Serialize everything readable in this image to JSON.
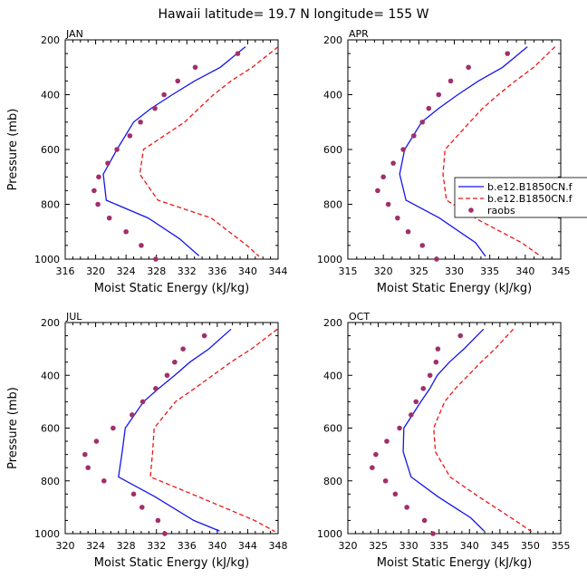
{
  "figure": {
    "title": "Hawaii  latitude= 19.7 N longitude= 155 W"
  },
  "legend": {
    "entries": [
      {
        "label": "b.e12.B1850CN.f",
        "style": "solid",
        "color": "#1515ee"
      },
      {
        "label": "b.e12.B1850CN.f",
        "style": "dashed",
        "color": "#ee1515"
      },
      {
        "label": "raobs",
        "style": "dots",
        "color": "#a0306a"
      }
    ]
  },
  "chart_data": [
    {
      "type": "line",
      "panel": "JAN",
      "xlabel": "Moist Static Energy (kJ/kg)",
      "ylabel": "Pressure (mb)",
      "xlim": [
        316,
        344
      ],
      "xticks": [
        316,
        320,
        324,
        328,
        332,
        336,
        340,
        344
      ],
      "ylim": [
        1000,
        200
      ],
      "yticks": [
        200,
        400,
        600,
        800,
        1000
      ],
      "series": [
        {
          "name": "b.e12.B1850CN.f",
          "style": "solid",
          "color": "#1515ee",
          "x": [
            339.7,
            336.4,
            333.0,
            330.1,
            327.3,
            325.0,
            322.8,
            321.0,
            321.4,
            326.9,
            331.0,
            333.6
          ],
          "y": [
            225,
            300,
            350,
            400,
            450,
            500,
            600,
            690,
            785,
            850,
            925,
            988
          ]
        },
        {
          "name": "b.e12.B1850CN.f",
          "style": "dashed",
          "color": "#ee1515",
          "x": [
            344.0,
            340.6,
            337.8,
            335.5,
            333.6,
            331.7,
            326.3,
            325.8,
            328.2,
            335.2,
            339.9,
            341.5
          ],
          "y": [
            225,
            300,
            350,
            400,
            450,
            500,
            600,
            690,
            785,
            850,
            950,
            990
          ]
        },
        {
          "name": "raobs",
          "style": "dots",
          "color": "#a0306a",
          "x": [
            338.7,
            333.1,
            330.8,
            329.0,
            327.8,
            325.9,
            324.5,
            322.8,
            321.6,
            320.4,
            319.8,
            320.3,
            321.8,
            324.0,
            326.0,
            327.9
          ],
          "y": [
            250,
            300,
            350,
            400,
            450,
            500,
            550,
            600,
            650,
            700,
            750,
            800,
            850,
            900,
            950,
            1000
          ]
        }
      ]
    },
    {
      "type": "line",
      "panel": "APR",
      "xlabel": "Moist Static Energy (kJ/kg)",
      "ylabel": "",
      "xlim": [
        315,
        345
      ],
      "xticks": [
        315,
        320,
        325,
        330,
        335,
        340,
        345
      ],
      "ylim": [
        1000,
        200
      ],
      "yticks": [
        200,
        400,
        600,
        800,
        1000
      ],
      "series": [
        {
          "name": "b.e12.B1850CN.f",
          "style": "solid",
          "color": "#1515ee",
          "x": [
            340.3,
            336.8,
            333.4,
            330.5,
            327.8,
            325.4,
            323.0,
            322.3,
            323.2,
            327.9,
            333.0,
            334.4
          ],
          "y": [
            225,
            300,
            350,
            400,
            450,
            500,
            600,
            690,
            785,
            850,
            940,
            990
          ]
        },
        {
          "name": "b.e12.B1850CN.f",
          "style": "dashed",
          "color": "#ee1515",
          "x": [
            344.2,
            341.2,
            338.6,
            336.2,
            334.0,
            332.2,
            328.7,
            328.4,
            328.9,
            333.6,
            339.5,
            342.2
          ],
          "y": [
            225,
            300,
            350,
            400,
            450,
            500,
            600,
            690,
            785,
            860,
            940,
            990
          ]
        },
        {
          "name": "raobs",
          "style": "dots",
          "color": "#a0306a",
          "x": [
            337.5,
            332.0,
            329.5,
            327.8,
            326.4,
            325.5,
            324.3,
            322.8,
            321.4,
            320.0,
            319.2,
            320.7,
            322.0,
            323.5,
            325.5,
            327.5
          ],
          "y": [
            250,
            300,
            350,
            400,
            450,
            500,
            550,
            600,
            650,
            700,
            750,
            800,
            850,
            900,
            950,
            1000
          ]
        }
      ]
    },
    {
      "type": "line",
      "panel": "JUL",
      "xlabel": "Moist Static Energy (kJ/kg)",
      "ylabel": "Pressure (mb)",
      "xlim": [
        320,
        348
      ],
      "xticks": [
        320,
        324,
        328,
        332,
        336,
        340,
        344,
        348
      ],
      "ylim": [
        1000,
        200
      ],
      "yticks": [
        200,
        400,
        600,
        800,
        1000
      ],
      "series": [
        {
          "name": "b.e12.B1850CN.f",
          "style": "solid",
          "color": "#1515ee",
          "x": [
            341.8,
            338.9,
            336.4,
            334.4,
            332.3,
            330.3,
            327.9,
            327.5,
            327.0,
            331.8,
            336.9,
            340.3
          ],
          "y": [
            225,
            300,
            350,
            400,
            450,
            500,
            600,
            690,
            785,
            860,
            950,
            990
          ]
        },
        {
          "name": "b.e12.B1850CN.f",
          "style": "dashed",
          "color": "#ee1515",
          "x": [
            347.9,
            344.5,
            341.8,
            339.4,
            337.0,
            334.5,
            331.7,
            331.5,
            331.2,
            337.5,
            344.9,
            347.6
          ],
          "y": [
            225,
            300,
            350,
            400,
            450,
            500,
            600,
            690,
            785,
            860,
            950,
            992
          ]
        },
        {
          "name": "raobs",
          "style": "dots",
          "color": "#a0306a",
          "x": [
            338.3,
            335.5,
            334.4,
            333.4,
            331.9,
            330.2,
            328.8,
            326.3,
            324.1,
            322.6,
            323.0,
            325.1,
            329.0,
            330.1,
            332.2,
            333.1
          ],
          "y": [
            250,
            300,
            350,
            400,
            450,
            500,
            550,
            600,
            650,
            700,
            750,
            800,
            850,
            900,
            950,
            1000
          ]
        }
      ]
    },
    {
      "type": "line",
      "panel": "OCT",
      "xlabel": "Moist Static Energy (kJ/kg)",
      "ylabel": "",
      "xlim": [
        320,
        355
      ],
      "xticks": [
        320,
        325,
        330,
        335,
        340,
        345,
        350,
        355
      ],
      "ylim": [
        1000,
        200
      ],
      "yticks": [
        200,
        400,
        600,
        800,
        1000
      ],
      "series": [
        {
          "name": "b.e12.B1850CN.f",
          "style": "solid",
          "color": "#1515ee",
          "x": [
            342.3,
            339.1,
            336.7,
            334.7,
            333.5,
            332.0,
            329.2,
            329.1,
            330.4,
            334.8,
            340.2,
            342.4
          ],
          "y": [
            225,
            300,
            350,
            400,
            450,
            500,
            600,
            690,
            785,
            860,
            940,
            990
          ]
        },
        {
          "name": "b.e12.B1850CN.f",
          "style": "dashed",
          "color": "#ee1515",
          "x": [
            347.2,
            344.2,
            341.9,
            339.8,
            337.7,
            335.9,
            334.1,
            334.4,
            336.8,
            341.5,
            347.5,
            350.2
          ],
          "y": [
            225,
            300,
            350,
            400,
            450,
            500,
            600,
            690,
            785,
            860,
            950,
            992
          ]
        },
        {
          "name": "raobs",
          "style": "dots",
          "color": "#a0306a",
          "x": [
            338.5,
            334.8,
            334.5,
            333.5,
            332.4,
            331.2,
            330.4,
            328.5,
            326.4,
            324.6,
            324.0,
            326.2,
            327.8,
            329.7,
            332.6,
            334.0
          ],
          "y": [
            250,
            300,
            350,
            400,
            450,
            500,
            550,
            600,
            650,
            700,
            750,
            800,
            850,
            900,
            950,
            1000
          ]
        }
      ]
    }
  ]
}
